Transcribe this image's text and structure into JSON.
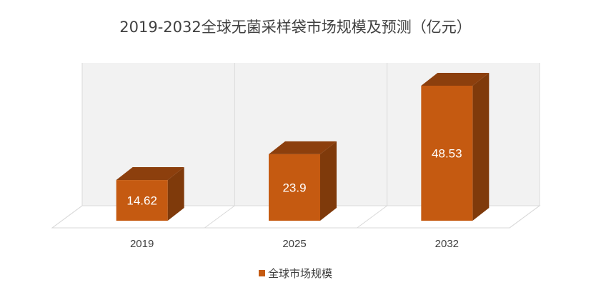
{
  "chart_data": {
    "type": "bar",
    "title": "2019-2032全球无菌采样袋市场规模及预测（亿元）",
    "categories": [
      "2019",
      "2025",
      "2032"
    ],
    "series": [
      {
        "name": "全球市场规模",
        "values": [
          14.62,
          23.9,
          48.53
        ],
        "color": "#c55a11"
      }
    ],
    "data_labels": [
      "14.62",
      "23.9",
      "48.53"
    ],
    "ylim": [
      0,
      60
    ],
    "grid": false,
    "three_d": true,
    "legend_position": "bottom"
  }
}
